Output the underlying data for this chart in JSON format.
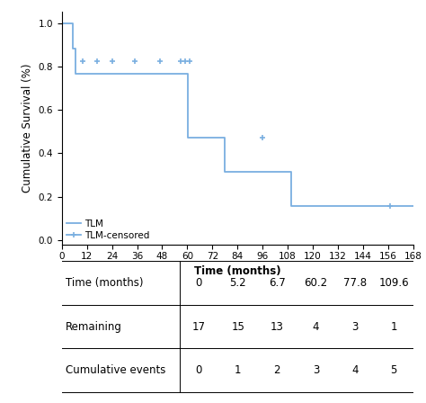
{
  "title": "",
  "xlabel": "Time (months)",
  "ylabel": "Cumulative Survival (%)",
  "xlim": [
    0,
    168
  ],
  "ylim": [
    -0.02,
    1.05
  ],
  "xticks": [
    0,
    12,
    24,
    36,
    48,
    60,
    72,
    84,
    96,
    108,
    120,
    132,
    144,
    156,
    168
  ],
  "yticks": [
    0.0,
    0.2,
    0.4,
    0.6,
    0.8,
    1.0
  ],
  "curve_color": "#7aafe0",
  "curve_linewidth": 1.3,
  "step_times": [
    0,
    5.2,
    6.7,
    60.2,
    77.8,
    109.6,
    156.0,
    168
  ],
  "step_survivals": [
    1.0,
    0.882,
    0.765,
    0.471,
    0.314,
    0.157,
    0.157,
    0.157
  ],
  "censored_times": [
    10.0,
    17.0,
    24.0,
    35.0,
    47.0,
    57.0,
    59.0,
    61.0,
    96.0,
    157.0
  ],
  "censored_survivals": [
    0.824,
    0.824,
    0.824,
    0.824,
    0.824,
    0.824,
    0.824,
    0.824,
    0.471,
    0.157
  ],
  "table_times": [
    "0",
    "5.2",
    "6.7",
    "60.2",
    "77.8",
    "109.6"
  ],
  "table_remaining": [
    "17",
    "15",
    "13",
    "4",
    "3",
    "1"
  ],
  "table_events": [
    "0",
    "1",
    "2",
    "3",
    "4",
    "5"
  ],
  "table_row_labels": [
    "Time (months)",
    "Remaining",
    "Cumulative events"
  ],
  "legend_labels": [
    "TLM",
    "TLM-censored"
  ],
  "background_color": "#ffffff",
  "font_size": 8.5,
  "table_font_size": 8.5
}
